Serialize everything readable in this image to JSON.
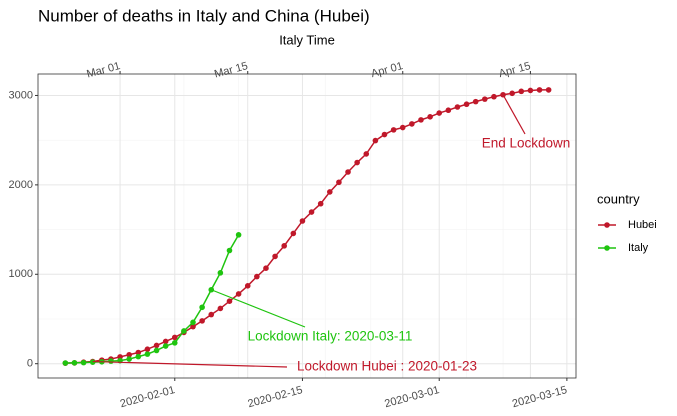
{
  "chart_data": {
    "type": "line",
    "title": "Number of deaths in Italy and China (Hubei)",
    "x2_label": "Italy Time",
    "xlim": [
      "2020-01-17",
      "2020-03-16"
    ],
    "xticks": [
      "2020-02-01",
      "2020-02-15",
      "2020-03-01",
      "2020-03-15"
    ],
    "x2lim": [
      "02-21",
      "04-20"
    ],
    "x2ticks": [
      {
        "value": "03-01",
        "label": "Mar 01"
      },
      {
        "value": "03-15",
        "label": "Mar 15"
      },
      {
        "value": "04-01",
        "label": "Apr 01"
      },
      {
        "value": "04-15",
        "label": "Apr 15"
      }
    ],
    "ylim": [
      -160,
      3240
    ],
    "yticks": [
      0,
      1000,
      2000,
      3000
    ],
    "grid": true,
    "legend_title": "country",
    "legend": "right",
    "series": [
      {
        "name": "Hubei",
        "color": "#c0182a",
        "axis": "x",
        "x": [
          "2020-01-20",
          "2020-01-21",
          "2020-01-22",
          "2020-01-23",
          "2020-01-24",
          "2020-01-25",
          "2020-01-26",
          "2020-01-27",
          "2020-01-28",
          "2020-01-29",
          "2020-01-30",
          "2020-01-31",
          "2020-02-01",
          "2020-02-02",
          "2020-02-03",
          "2020-02-04",
          "2020-02-05",
          "2020-02-06",
          "2020-02-07",
          "2020-02-08",
          "2020-02-09",
          "2020-02-10",
          "2020-02-11",
          "2020-02-12",
          "2020-02-13",
          "2020-02-14",
          "2020-02-15",
          "2020-02-16",
          "2020-02-17",
          "2020-02-18",
          "2020-02-19",
          "2020-02-20",
          "2020-02-21",
          "2020-02-22",
          "2020-02-23",
          "2020-02-24",
          "2020-02-25",
          "2020-02-26",
          "2020-02-27",
          "2020-02-28",
          "2020-02-29",
          "2020-03-01",
          "2020-03-02",
          "2020-03-03",
          "2020-03-04",
          "2020-03-05",
          "2020-03-06",
          "2020-03-07",
          "2020-03-08",
          "2020-03-09",
          "2020-03-10",
          "2020-03-11",
          "2020-03-12",
          "2020-03-13"
        ],
        "values": [
          6,
          9,
          17,
          24,
          40,
          52,
          76,
          100,
          125,
          162,
          204,
          249,
          294,
          350,
          414,
          479,
          549,
          618,
          699,
          780,
          871,
          974,
          1068,
          1200,
          1318,
          1457,
          1596,
          1696,
          1789,
          1921,
          2029,
          2144,
          2250,
          2346,
          2495,
          2563,
          2615,
          2641,
          2682,
          2727,
          2761,
          2803,
          2835,
          2871,
          2902,
          2931,
          2959,
          2986,
          3008,
          3024,
          3046,
          3056,
          3062,
          3062
        ]
      },
      {
        "name": "Italy",
        "color": "#1fc40f",
        "axis": "x2",
        "x": [
          "02-24",
          "02-25",
          "02-26",
          "02-27",
          "02-28",
          "02-29",
          "03-01",
          "03-02",
          "03-03",
          "03-04",
          "03-05",
          "03-06",
          "03-07",
          "03-08",
          "03-09",
          "03-10",
          "03-11",
          "03-12",
          "03-13",
          "03-14"
        ],
        "values": [
          7,
          10,
          12,
          17,
          21,
          29,
          34,
          52,
          79,
          107,
          148,
          197,
          233,
          366,
          463,
          631,
          827,
          1016,
          1266,
          1441
        ]
      }
    ],
    "annotations": [
      {
        "text": "Lockdown Hubei : 2020-01-23",
        "color": "#c0182a"
      },
      {
        "text": "Lockdown Italy: 2020-03-11",
        "color": "#1fc40f"
      },
      {
        "text": "End Lockdown",
        "color": "#c0182a"
      }
    ]
  }
}
